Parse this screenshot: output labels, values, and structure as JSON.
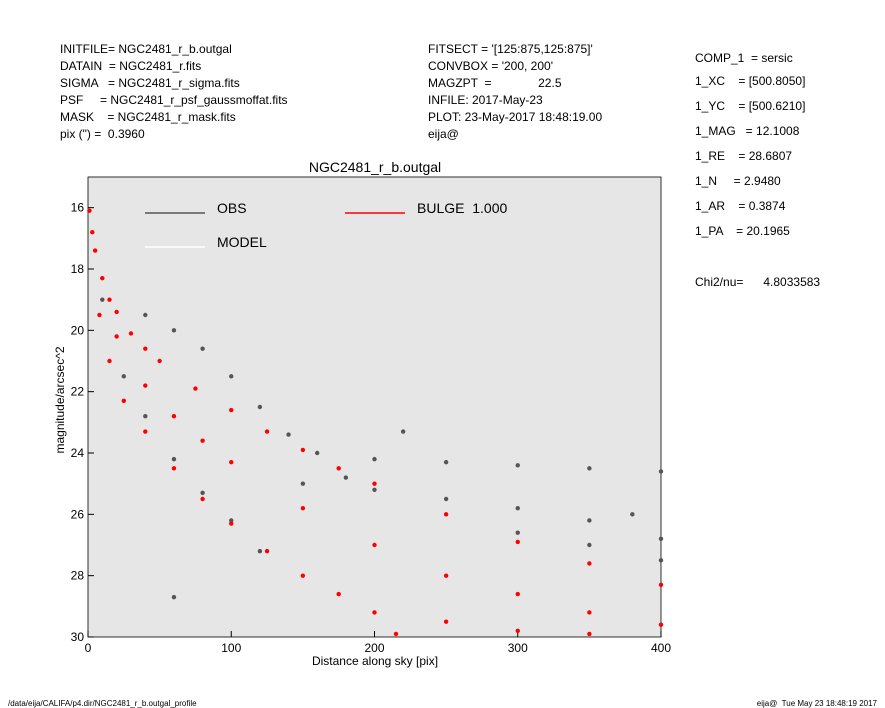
{
  "chart_data": {
    "type": "scatter",
    "title": "NGC2481_r_b.outgal",
    "xlabel": "Distance along sky [pix]",
    "ylabel": "magnitude/arcsec^2",
    "header_left": [
      "INITFILE= NGC2481_r_b.outgal",
      "DATAIN  = NGC2481_r.fits",
      "SIGMA   = NGC2481_r_sigma.fits",
      "PSF     = NGC2481_r_psf_gaussmoffat.fits",
      "MASK    = NGC2481_r_mask.fits",
      "pix (\") =  0.3960"
    ],
    "header_mid": [
      "FITSECT = '[125:875,125:875]'",
      "CONVBOX = '200, 200'",
      "MAGZPT  =              22.5",
      "INFILE: 2017-May-23",
      "PLOT: 23-May-2017 18:48:19.00",
      "eija@"
    ],
    "params_title": "COMP_1  = sersic",
    "params": [
      "1_XC    = [500.8050]",
      "1_YC    = [500.6210]",
      "1_MAG   = 12.1008",
      "1_RE    = 28.6807",
      "1_N     = 2.9480",
      "1_AR    = 0.3874",
      "1_PA    = 20.1965"
    ],
    "chi2": "Chi2/nu=      4.8033583",
    "footer_left": "/data/eija/CALIFA/p4.dir/NGC2481_r_b.outgal_profile",
    "footer_right": "eija@  Tue May 23 18:48:19 2017",
    "xlim": [
      0,
      400
    ],
    "xticks": [
      0,
      100,
      200,
      300,
      400
    ],
    "ylim": [
      30,
      15
    ],
    "yticks": [
      16,
      18,
      20,
      22,
      24,
      26,
      28,
      30
    ],
    "series": [
      {
        "name": "OBS",
        "color": "#555555",
        "x": [
          40,
          60,
          80,
          100,
          120,
          140,
          160,
          200,
          250,
          300,
          350,
          400,
          200,
          250,
          300,
          350,
          400,
          300,
          350,
          400,
          25,
          40,
          60,
          80,
          100,
          120,
          60,
          150,
          180,
          380,
          220,
          10
        ],
        "values": [
          19.5,
          20,
          20.6,
          21.5,
          22.5,
          23.4,
          24,
          24.2,
          24.3,
          24.4,
          24.5,
          24.6,
          25.2,
          25.5,
          25.8,
          26.2,
          26.8,
          26.6,
          27,
          27.5,
          21.5,
          22.8,
          24.2,
          25.3,
          26.2,
          27.2,
          28.7,
          25,
          24.8,
          26,
          23.3,
          19
        ]
      },
      {
        "name": "MODEL",
        "color": "#ffffff",
        "x": [],
        "values": []
      },
      {
        "name": "BULGE  1.000",
        "color": "#ff0000",
        "x": [
          1,
          3,
          5,
          10,
          15,
          20,
          30,
          40,
          50,
          75,
          100,
          125,
          150,
          175,
          200,
          250,
          300,
          350,
          400,
          8,
          15,
          25,
          40,
          60,
          80,
          100,
          125,
          150,
          175,
          200,
          215,
          20,
          40,
          60,
          80,
          100,
          150,
          200,
          250,
          300,
          350,
          400,
          250,
          300,
          350
        ],
        "values": [
          16.1,
          16.8,
          17.4,
          18.3,
          19,
          19.4,
          20.1,
          20.6,
          21,
          21.9,
          22.6,
          23.3,
          23.9,
          24.5,
          25,
          26,
          26.9,
          27.6,
          28.3,
          19.5,
          21,
          22.3,
          23.3,
          24.5,
          25.5,
          26.3,
          27.2,
          28,
          28.6,
          29.2,
          29.9,
          20.2,
          21.8,
          22.8,
          23.6,
          24.3,
          25.8,
          27,
          28,
          28.6,
          29.2,
          29.6,
          29.5,
          29.8,
          29.9
        ]
      }
    ]
  }
}
